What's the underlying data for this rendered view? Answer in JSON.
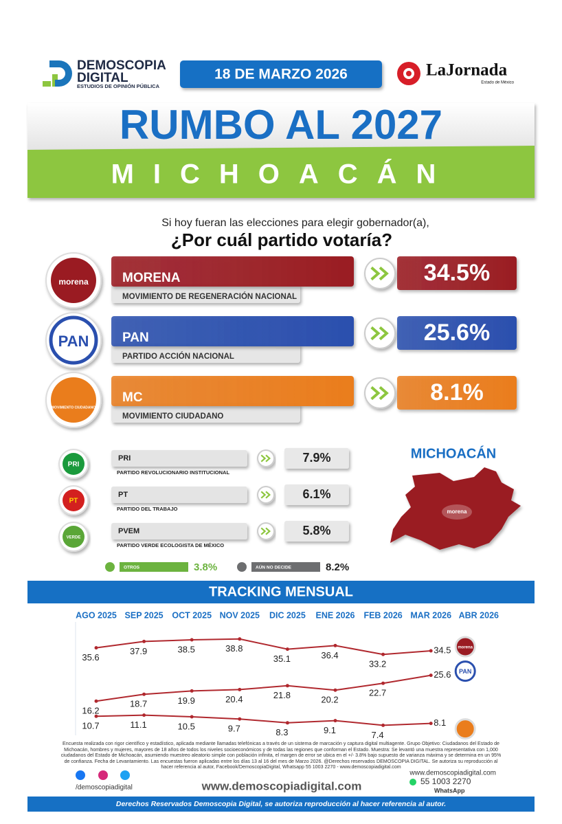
{
  "header": {
    "brand": "DEMOSCOPIA",
    "brand2": "DIGITAL",
    "tagline": "ESTUDIOS DE OPINIÓN PÚBLICA",
    "date": "18 DE MARZO 2026",
    "partner": "LaJornada",
    "partner_sub": "Estado de México"
  },
  "title": "RUMBO AL 2027",
  "state": "MICHOACÁN",
  "question": [
    "Si hoy fueran las elecciones para elegir gobernador(a),",
    "¿Por cuál partido votaría?"
  ],
  "main_parties": [
    {
      "logo": "morena",
      "short": "MORENA",
      "name": "MOVIMIENTO DE REGENERACIÓN NACIONAL",
      "value": "34.5%",
      "color": "#9a1b22"
    },
    {
      "logo": "PAN",
      "short": "PAN",
      "name": "PARTIDO ACCIÓN NACIONAL",
      "value": "25.6%",
      "color": "#2a4fae"
    },
    {
      "logo": "MOVIMIENTO CIUDADANO",
      "short": "MC",
      "name": "MOVIMIENTO CIUDADANO",
      "value": "8.1%",
      "color": "#ea7d1c"
    }
  ],
  "minor_parties": [
    {
      "logo": "PRI",
      "short": "PRI",
      "name": "PARTIDO REVOLUCIONARIO INSTITUCIONAL",
      "value": "7.9%",
      "color": "#1a9a3c"
    },
    {
      "logo": "PT",
      "short": "PT",
      "name": "PARTIDO DEL TRABAJO",
      "value": "6.1%",
      "color": "#d3201f"
    },
    {
      "logo": "VERDE",
      "short": "PVEM",
      "name": "PARTIDO VERDE ECOLOGISTA DE MÉXICO",
      "value": "5.8%",
      "color": "#5aa637"
    }
  ],
  "others": [
    {
      "label": "OTROS",
      "value": "3.8%",
      "color": "#6cb33f"
    },
    {
      "label": "AÚN NO DECIDE",
      "value": "8.2%",
      "color": "#6d6e70"
    }
  ],
  "map": {
    "title": "MICHOACÁN",
    "winner": "morena",
    "color": "#9a1b22"
  },
  "chart_data": {
    "type": "line",
    "title": "TRACKING MENSUAL",
    "categories": [
      "AGO 2025",
      "SEP 2025",
      "OCT 2025",
      "NOV 2025",
      "DIC 2025",
      "ENE 2026",
      "FEB 2026",
      "MAR 2026",
      "ABR 2026"
    ],
    "series": [
      {
        "name": "morena",
        "color": "#b0282e",
        "values": [
          35.6,
          37.9,
          38.5,
          38.8,
          35.1,
          36.4,
          33.2,
          34.5,
          null
        ]
      },
      {
        "name": "PAN",
        "color": "#b0282e",
        "values": [
          16.2,
          18.7,
          19.9,
          20.4,
          21.8,
          20.2,
          22.7,
          25.6,
          null
        ]
      },
      {
        "color": "#b0282e",
        "values": [
          10.7,
          11.1,
          10.5,
          9.7,
          8.3,
          9.1,
          7.4,
          8.1,
          null
        ]
      }
    ],
    "ylim": [
      0,
      45
    ]
  },
  "footer": {
    "methodology": "Encuesta realizada con rigor científico y estadístico, aplicada mediante llamadas telefónicas a través de un sistema de marcación y captura digital multiagente. Grupo Objetivo: Ciudadanos del Estado de Michoacán, hombres y mujeres, mayores de 18 años de todos los niveles socioeconómicos y de todas las regiones que conforman el Estado. Muestra: Se levantó una muestra representativa con 1,000 ciudadanos del Estado de Michoacán, asumiendo muestreo aleatorio simple con población infinita, el margen de error se ubica en el +/- 3.8% bajo supuesto de varianza máxima y se determina en un 95% de confianza. Fecha de Levantamiento. Las encuestas fueron aplicadas entre los días 13 al 16 del mes de Marzo 2026. @Derechos reservados DEMOSCOPIA DIGITAL. Se autoriza su reproducción al hacer referencia al autor, Facebook/DemoscopiaDigital, Whatsapp 55 1003 2270 - www.demoscopiadigital.com",
    "social": "/demoscopiadigital",
    "website": "www.demoscopiadigital.com",
    "website_small": "www.demoscopiadigital.com",
    "phone": "55 1003 2270",
    "whatsapp": "WhatsApp",
    "rights": "Derechos Reservados Demoscopia Digital, se autoriza reproducción al hacer referencia al autor."
  }
}
